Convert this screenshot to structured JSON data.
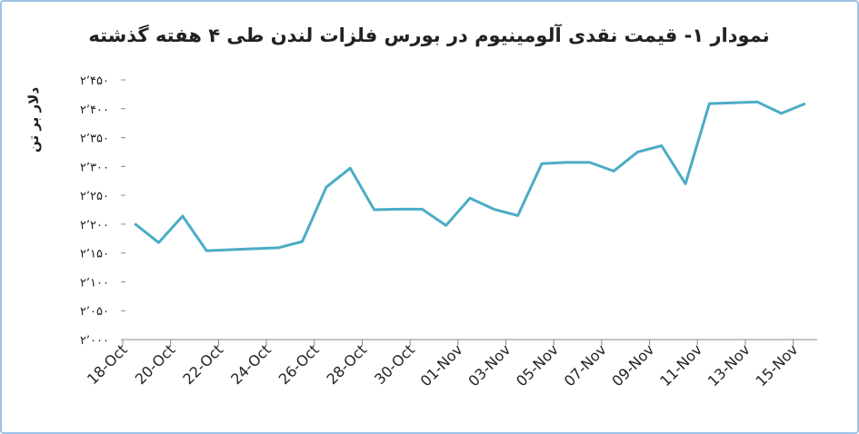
{
  "chart_data": {
    "type": "line",
    "title": "نمودار ۱- قیمت نقدی آلومینیوم در بورس فلزات لندن طی ۴ هفته گذشته",
    "y_label": "دلار بر تن",
    "x": [
      "18-Oct",
      "19-Oct",
      "20-Oct",
      "21-Oct",
      "24-Oct",
      "25-Oct",
      "26-Oct",
      "27-Oct",
      "28-Oct",
      "29-Oct",
      "30-Oct",
      "31-Oct",
      "01-Nov",
      "02-Nov",
      "03-Nov",
      "04-Nov",
      "05-Nov",
      "06-Nov",
      "07-Nov",
      "08-Nov",
      "09-Nov",
      "10-Nov",
      "11-Nov",
      "13-Nov",
      "14-Nov",
      "15-Nov"
    ],
    "series": [
      {
        "color": "#4bacc6",
        "values": [
          2201,
          2168,
          2214,
          2154,
          2159,
          2170,
          2264,
          2297,
          2225,
          2226,
          2226,
          2198,
          2245,
          2226,
          2215,
          2305,
          2307,
          2307,
          2292,
          2325,
          2336,
          2270,
          2409,
          2412,
          2392,
          2409
        ]
      }
    ],
    "xlim": [
      "18-Oct",
      "16-Nov"
    ],
    "xticks": [
      "18-Oct",
      "20-Oct",
      "22-Oct",
      "24-Oct",
      "26-Oct",
      "28-Oct",
      "30-Oct",
      "01-Nov",
      "03-Nov",
      "05-Nov",
      "07-Nov",
      "09-Nov",
      "11-Nov",
      "13-Nov",
      "15-Nov"
    ],
    "ylim": [
      2000,
      2450
    ],
    "yticks": [
      {
        "value": 2000,
        "label": "۲٬۰۰۰"
      },
      {
        "value": 2050,
        "label": "۲٬۰۵۰"
      },
      {
        "value": 2100,
        "label": "۲٬۱۰۰"
      },
      {
        "value": 2150,
        "label": "۲٬۱۵۰"
      },
      {
        "value": 2200,
        "label": "۲٬۲۰۰"
      },
      {
        "value": 2250,
        "label": "۲٬۲۵۰"
      },
      {
        "value": 2300,
        "label": "۲٬۳۰۰"
      },
      {
        "value": 2350,
        "label": "۲٬۳۵۰"
      },
      {
        "value": 2400,
        "label": "۲٬۴۰۰"
      },
      {
        "value": 2450,
        "label": "۲٬۴۵۰"
      }
    ],
    "grid": false
  }
}
